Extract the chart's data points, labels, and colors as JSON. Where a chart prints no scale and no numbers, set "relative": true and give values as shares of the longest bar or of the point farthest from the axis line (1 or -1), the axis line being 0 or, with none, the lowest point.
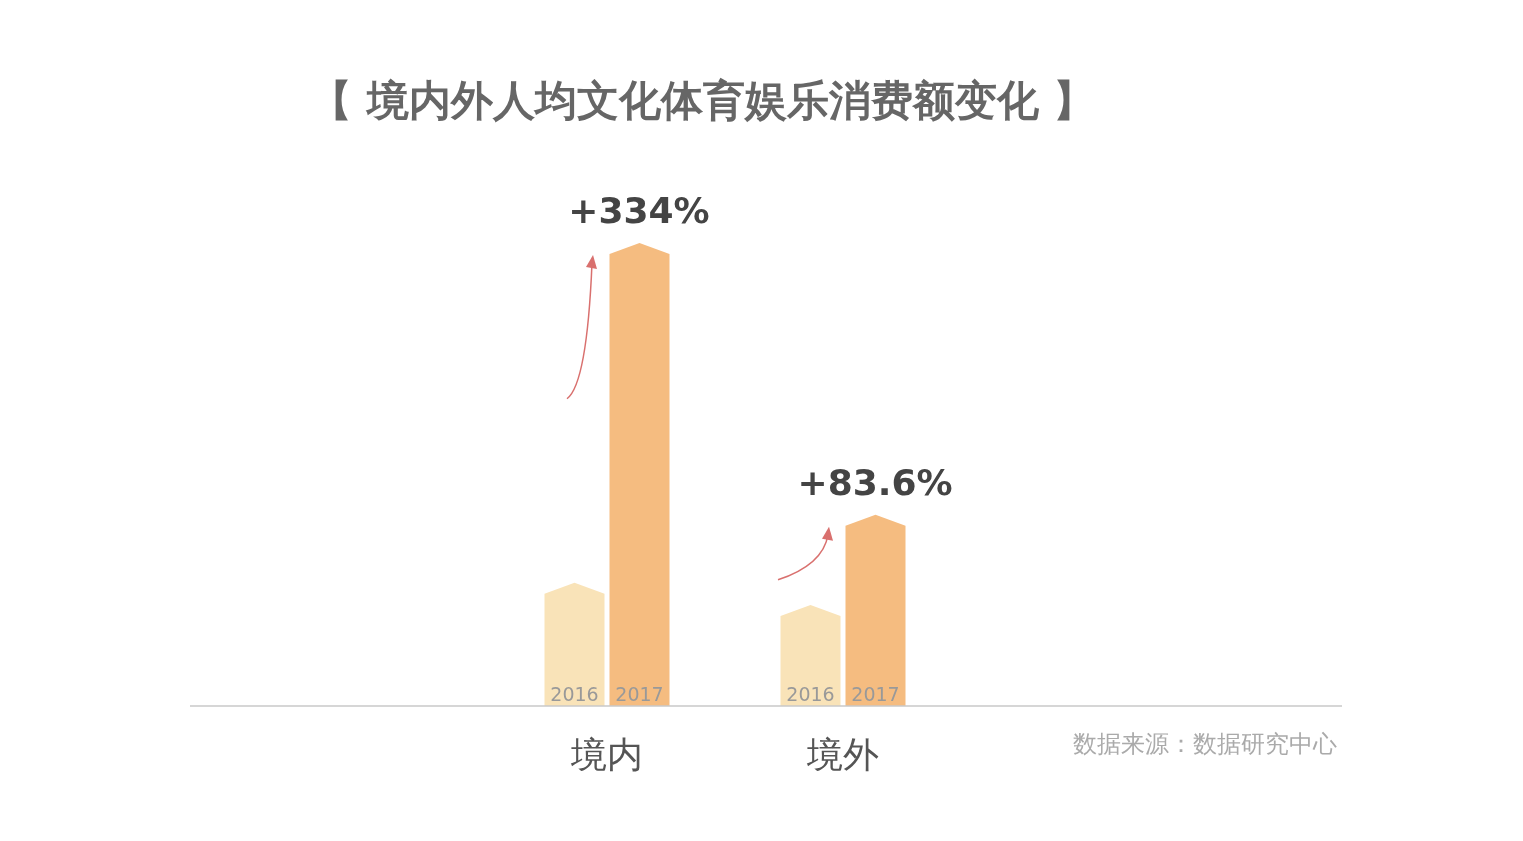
{
  "chart_data": {
    "type": "bar",
    "title": "【 境内外人均文化体育娱乐消费额变化 】",
    "relative": true,
    "categories": [
      "境内",
      "境外"
    ],
    "series": [
      {
        "name": "2016",
        "color": "#f9e3b8",
        "values": [
          0.266,
          0.218
        ]
      },
      {
        "name": "2017",
        "color": "#f5bc80",
        "values": [
          1,
          0.413
        ]
      }
    ],
    "annotations": [
      "+334%",
      "+83.6%",
      "数据来源：数据研究中心"
    ]
  }
}
